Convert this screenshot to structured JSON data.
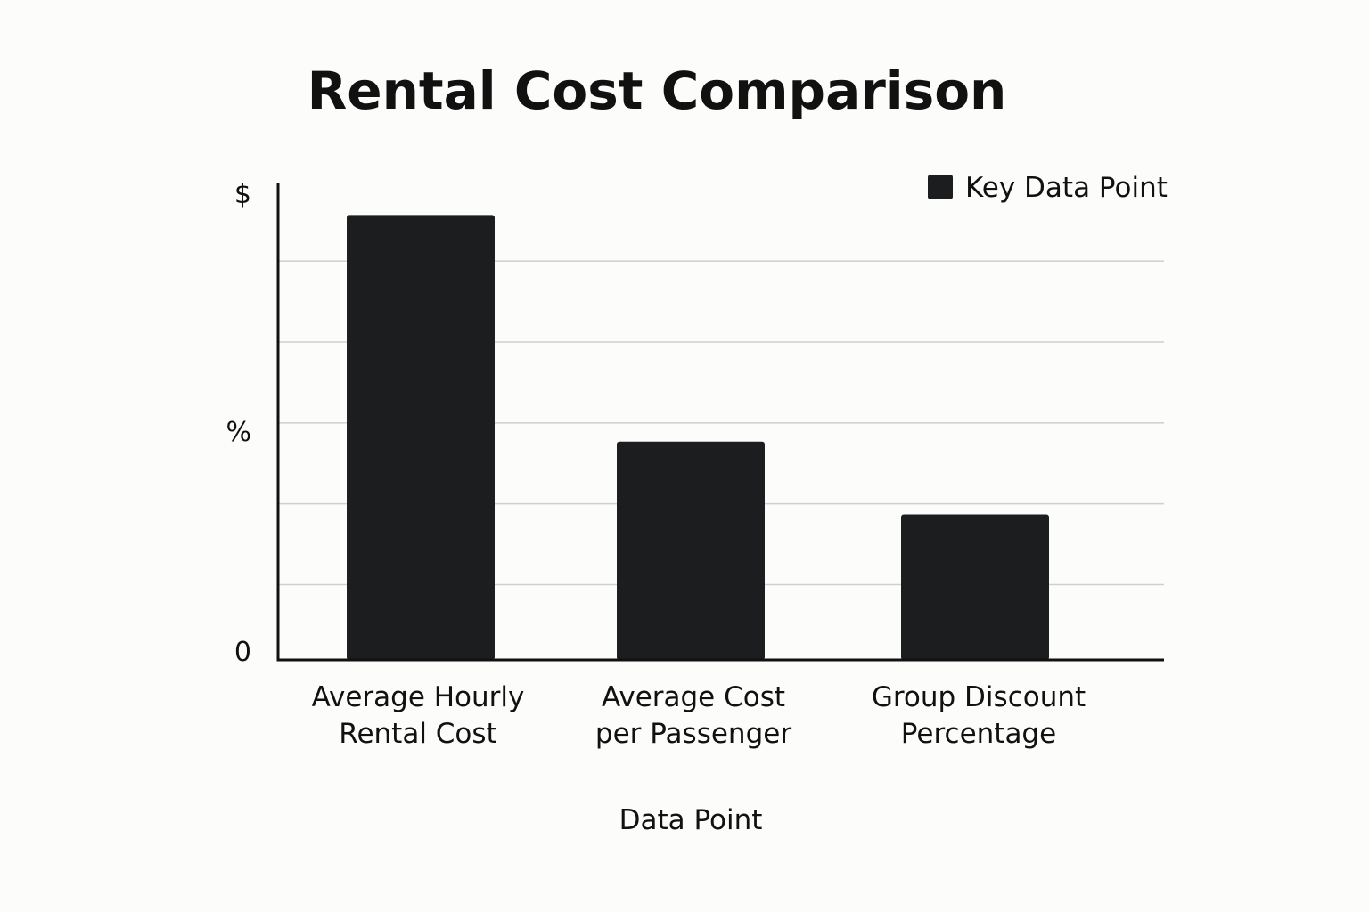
{
  "chart_data": {
    "type": "bar",
    "title": "Rental Cost Comparison",
    "xlabel": "Data Point",
    "ylabel": "",
    "categories": [
      [
        "Average Hourly",
        "Rental Cost"
      ],
      [
        "Average Cost",
        "per Passenger"
      ],
      [
        "Group Discount",
        "Percentage"
      ]
    ],
    "series": [
      {
        "name": "Key Data Point",
        "values": [
          5.5,
          2.7,
          1.8
        ]
      }
    ],
    "y_tick_labels": [
      {
        "label": "$",
        "value": 5.9
      },
      {
        "label": "%",
        "value": 2.9
      },
      {
        "label": "0",
        "value": 0
      }
    ],
    "gridlines": [
      0.93,
      1.93,
      2.93,
      3.93,
      4.93
    ],
    "ylim": [
      0,
      5.9
    ],
    "grid": true,
    "legend_position": "top-right",
    "colors": {
      "bar": "#1b1d1e",
      "grid": "#cfcfcf",
      "axis": "#111111",
      "text": "#111111",
      "background": "#fcfcfa"
    }
  }
}
